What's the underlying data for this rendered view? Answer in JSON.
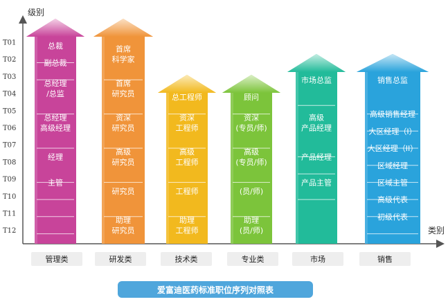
{
  "axis": {
    "y_label": "级别",
    "x_label": "类别",
    "levels": [
      "T01",
      "T02",
      "T03",
      "T04",
      "T05",
      "T06",
      "T07",
      "T08",
      "T09",
      "T10",
      "T11",
      "T12"
    ]
  },
  "columns": [
    {
      "category": "管理类",
      "color": "#c8449a",
      "light": "#f4d1e6",
      "labels": [
        {
          "lines": [
            "总裁"
          ],
          "level": 1
        },
        {
          "lines": [
            "副总裁"
          ],
          "level": 2
        },
        {
          "lines": [
            "总经理",
            "/总监"
          ],
          "level": 3.5
        },
        {
          "lines": [
            "总经理",
            "高级经理"
          ],
          "level": 5.5
        },
        {
          "lines": [
            "经理"
          ],
          "level": 7.5
        },
        {
          "lines": [
            "主管"
          ],
          "level": 9
        }
      ],
      "dividers": [
        1.5,
        2.5,
        4.5,
        6.5,
        8.5,
        9.5,
        10.5,
        11.5
      ]
    },
    {
      "category": "研发类",
      "color": "#f0943a",
      "light": "#fbe0c4",
      "labels": [
        {
          "lines": [
            "首席",
            "科学家"
          ],
          "level": 1.5
        },
        {
          "lines": [
            "首席",
            "研究员"
          ],
          "level": 3.5
        },
        {
          "lines": [
            "资深",
            "研究员"
          ],
          "level": 5.5
        },
        {
          "lines": [
            "高级",
            "研究员"
          ],
          "level": 7.5
        },
        {
          "lines": [
            "研究员"
          ],
          "level": 9.5
        },
        {
          "lines": [
            "助理",
            "研究员"
          ],
          "level": 11.5
        }
      ],
      "dividers": [
        2.5,
        4.5,
        6.5,
        8.5,
        10.5
      ]
    },
    {
      "category": "技术类",
      "color": "#f2b91e",
      "light": "#fbeab8",
      "labels": [
        {
          "lines": [
            "总工程师"
          ],
          "level": 4
        },
        {
          "lines": [
            "资深",
            "工程师"
          ],
          "level": 5.5
        },
        {
          "lines": [
            "高级",
            "工程师"
          ],
          "level": 7.5
        },
        {
          "lines": [
            "工程师"
          ],
          "level": 9.5
        },
        {
          "lines": [
            "助理",
            "工程师"
          ],
          "level": 11.5
        }
      ],
      "dividers": [
        4.5,
        6.5,
        8.5,
        10.5
      ]
    },
    {
      "category": "专业类",
      "color": "#7cc43b",
      "light": "#dbefc7",
      "labels": [
        {
          "lines": [
            "顾问"
          ],
          "level": 4
        },
        {
          "lines": [
            "资深",
            "(专员/师)"
          ],
          "level": 5.5
        },
        {
          "lines": [
            "高级",
            "(专员/师)"
          ],
          "level": 7.5
        },
        {
          "lines": [
            "(员/师)"
          ],
          "level": 9.5
        },
        {
          "lines": [
            "助理",
            "(员/师)"
          ],
          "level": 11.5
        }
      ],
      "dividers": [
        4.5,
        6.5,
        8.5,
        10.5
      ]
    },
    {
      "category": "市场",
      "color": "#22bb9a",
      "light": "#c4ede2",
      "labels": [
        {
          "lines": [
            "市场总监"
          ],
          "level": 3
        },
        {
          "lines": [
            "高级",
            "产品经理"
          ],
          "level": 5.5
        },
        {
          "lines": [
            "产品经理"
          ],
          "level": 7.5
        },
        {
          "lines": [
            "产品主管"
          ],
          "level": 9
        }
      ],
      "dividers": [
        4,
        7,
        8,
        9.5
      ]
    },
    {
      "category": "销售",
      "color": "#2aa3dc",
      "light": "#c6e6f6",
      "labels": [
        {
          "lines": [
            "销售总监"
          ],
          "level": 3
        },
        {
          "lines": [
            "高级销售经理"
          ],
          "level": 5
        },
        {
          "lines": [
            "大区经理（I）"
          ],
          "level": 6
        },
        {
          "lines": [
            "大区经理（II）"
          ],
          "level": 7
        },
        {
          "lines": [
            "区域经理"
          ],
          "level": 8
        },
        {
          "lines": [
            "区域主管"
          ],
          "level": 9
        },
        {
          "lines": [
            "高级代表"
          ],
          "level": 10
        },
        {
          "lines": [
            "初级代表"
          ],
          "level": 11
        }
      ],
      "dividers": [
        4.5,
        5.5,
        6.5,
        7.5,
        8.5,
        9.5,
        10.5,
        11.5
      ]
    }
  ],
  "title": "爱富迪医药标准职位序列对照表",
  "title_color": "#4fa6dc"
}
